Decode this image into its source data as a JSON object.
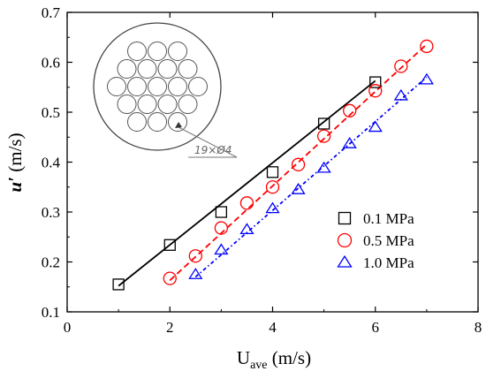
{
  "chart_data": {
    "type": "scatter",
    "xlabel": "U",
    "xlabel_sub": "ave",
    "xlabel_unit": " (m/s)",
    "ylabel": "u′ (m/s)",
    "ylabel_symbol": "u′",
    "ylabel_unit": " (m/s)",
    "xlim": [
      0,
      8
    ],
    "ylim": [
      0.1,
      0.7
    ],
    "xticks": [
      0,
      2,
      4,
      6,
      8
    ],
    "yticks": [
      0.1,
      0.2,
      0.3,
      0.4,
      0.5,
      0.6,
      0.7
    ],
    "grid": false,
    "legend_position": "bottom-right",
    "series": [
      {
        "name": "0.1 MPa",
        "marker": "square",
        "color": "#000000",
        "line_style": "solid",
        "x": [
          1,
          2,
          3,
          4,
          5,
          6
        ],
        "y": [
          0.155,
          0.234,
          0.3,
          0.38,
          0.477,
          0.56
        ],
        "fit": [
          [
            1,
            0.152
          ],
          [
            6,
            0.563
          ]
        ]
      },
      {
        "name": "0.5 MPa",
        "marker": "circle",
        "color": "#ff0000",
        "line_style": "dashed",
        "x": [
          2,
          2.5,
          3,
          3.5,
          4,
          4.5,
          5,
          5.5,
          6,
          6.5,
          7
        ],
        "y": [
          0.167,
          0.212,
          0.268,
          0.318,
          0.35,
          0.395,
          0.452,
          0.503,
          0.543,
          0.592,
          0.632
        ],
        "fit": [
          [
            2,
            0.163
          ],
          [
            7,
            0.636
          ]
        ]
      },
      {
        "name": "1.0 MPa",
        "marker": "triangle",
        "color": "#0000ff",
        "line_style": "dashdot",
        "x": [
          2.5,
          3,
          3.5,
          4,
          4.5,
          5,
          5.5,
          6,
          6.5,
          7
        ],
        "y": [
          0.175,
          0.224,
          0.265,
          0.307,
          0.345,
          0.388,
          0.437,
          0.47,
          0.533,
          0.565
        ],
        "fit": [
          [
            2.5,
            0.17
          ],
          [
            7,
            0.57
          ]
        ]
      }
    ],
    "inset": {
      "description_icon": "tube-bundle-cross-section-icon",
      "tube_count": 19,
      "annotation": "19×Ø4"
    }
  }
}
